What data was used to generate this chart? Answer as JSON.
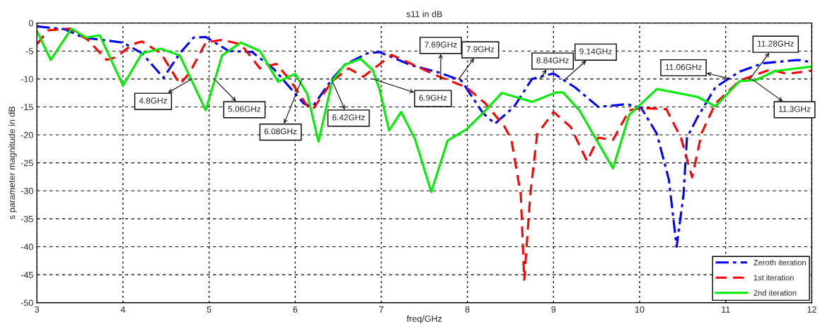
{
  "chart_data": {
    "type": "line",
    "title": "s11 in dB",
    "xlabel": "freq/GHz",
    "ylabel": "s parameter magnitude in dB",
    "xlim": [
      3,
      12
    ],
    "ylim": [
      -50,
      0
    ],
    "xticks": [
      3,
      4,
      5,
      6,
      7,
      8,
      9,
      10,
      11,
      12
    ],
    "yticks": [
      -50,
      -45,
      -40,
      -35,
      -30,
      -25,
      -20,
      -15,
      -10,
      -5,
      0
    ],
    "grid": true,
    "legend": "bottom right",
    "series": [
      {
        "name": "Zeroth iteration",
        "color": "#0000ff",
        "line_style": "dashdot",
        "x": [
          3,
          3.32,
          3.54,
          4.0,
          4.22,
          4.47,
          4.66,
          4.82,
          4.96,
          5.23,
          5.5,
          5.75,
          6.1,
          6.2,
          6.43,
          6.57,
          6.84,
          6.98,
          7.34,
          7.66,
          7.93,
          8.18,
          8.32,
          8.54,
          8.75,
          9.0,
          9.25,
          9.52,
          9.85,
          10.02,
          10.2,
          10.34,
          10.43,
          10.51,
          10.55,
          10.67,
          10.88,
          11.16,
          11.43,
          11.84,
          12
        ],
        "values": [
          -0.6,
          -1.1,
          -2.6,
          -3.5,
          -5.4,
          -9.8,
          -5.4,
          -2.6,
          -2.5,
          -5.0,
          -5.2,
          -8.2,
          -14.4,
          -15,
          -10,
          -7.5,
          -5.4,
          -5.2,
          -7.5,
          -8.8,
          -10.3,
          -16.1,
          -18,
          -15,
          -10,
          -9.0,
          -11.5,
          -15,
          -14.5,
          -15.2,
          -19.8,
          -28,
          -40,
          -30.7,
          -20.5,
          -16.9,
          -11.5,
          -8.7,
          -7.2,
          -6.6,
          -7.0
        ]
      },
      {
        "name": "1st iteration",
        "color": "#ff0000",
        "line_style": "dashed",
        "x": [
          3,
          3.13,
          3.38,
          3.59,
          3.81,
          3.92,
          4.11,
          4.22,
          4.44,
          4.66,
          4.77,
          4.96,
          5.15,
          5.37,
          5.59,
          5.78,
          5.94,
          6.16,
          6.21,
          6.43,
          6.62,
          6.79,
          7.12,
          7.66,
          7.99,
          8.21,
          8.43,
          8.51,
          8.62,
          8.66,
          8.73,
          8.81,
          9.0,
          9.2,
          9.39,
          9.52,
          9.69,
          9.88,
          10.02,
          10.31,
          10.48,
          10.61,
          10.72,
          10.88,
          11.16,
          11.52,
          11.71,
          12
        ],
        "values": [
          -3.8,
          -1.3,
          -1.0,
          -3.0,
          -6.6,
          -6.1,
          -3.8,
          -3.3,
          -5.4,
          -10.9,
          -9,
          -3.5,
          -3.0,
          -3.8,
          -8.1,
          -7.3,
          -10.2,
          -15.3,
          -15.3,
          -10.4,
          -8.1,
          -9.6,
          -5.7,
          -9.5,
          -11.5,
          -14.4,
          -18.5,
          -20.8,
          -30.7,
          -45.9,
          -30.7,
          -19.9,
          -15.9,
          -18.6,
          -24.7,
          -20.5,
          -20.9,
          -15.6,
          -15.2,
          -15.4,
          -20.5,
          -27.6,
          -19.7,
          -14.4,
          -10.3,
          -8.3,
          -9.1,
          -8.5
        ]
      },
      {
        "name": "2nd iteration",
        "color": "#00ee00",
        "line_style": "solid",
        "x": [
          3,
          3.16,
          3.4,
          3.57,
          3.73,
          4.0,
          4.22,
          4.44,
          4.66,
          4.96,
          5.15,
          5.37,
          5.59,
          5.8,
          6.0,
          6.14,
          6.27,
          6.43,
          6.57,
          6.76,
          6.9,
          6.98,
          7.09,
          7.23,
          7.39,
          7.58,
          7.77,
          7.99,
          8.18,
          8.4,
          8.75,
          9.03,
          9.11,
          9.3,
          9.69,
          9.88,
          10.2,
          10.67,
          10.88,
          11.16,
          11.35,
          11.57,
          11.98,
          12
        ],
        "values": [
          -1.4,
          -6.6,
          -1.0,
          -2.6,
          -2.2,
          -11.2,
          -5.4,
          -4.6,
          -5.8,
          -15.6,
          -5.8,
          -3.5,
          -5.0,
          -10.5,
          -9.1,
          -12.7,
          -21.2,
          -10.4,
          -7.5,
          -6.4,
          -8.4,
          -11.9,
          -19.2,
          -15.9,
          -20.7,
          -30.2,
          -21,
          -19,
          -16.1,
          -12.5,
          -14.1,
          -12.4,
          -12.4,
          -15.6,
          -26,
          -16.4,
          -11.8,
          -13.2,
          -14.9,
          -10.4,
          -10.2,
          -8.6,
          -7.8,
          -7.8
        ]
      }
    ],
    "annotations": [
      {
        "text": "4.8GHz",
        "x": 4.8,
        "y": -10
      },
      {
        "text": "5.06GHz",
        "x": 5.06,
        "y": -10
      },
      {
        "text": "6.08GHz",
        "x": 6.08,
        "y": -10
      },
      {
        "text": "6.42GHz",
        "x": 6.42,
        "y": -10
      },
      {
        "text": "6.9GHz",
        "x": 6.9,
        "y": -10
      },
      {
        "text": "7.69GHz",
        "x": 7.69,
        "y": -10
      },
      {
        "text": "7.9GHz",
        "x": 7.9,
        "y": -10
      },
      {
        "text": "8.84GHz",
        "x": 8.84,
        "y": -10
      },
      {
        "text": "9.14GHz",
        "x": 9.14,
        "y": -10
      },
      {
        "text": "11.06GHz",
        "x": 11.06,
        "y": -10
      },
      {
        "text": "11.28GHz",
        "x": 11.28,
        "y": -10
      },
      {
        "text": "11.3GHz",
        "x": 11.3,
        "y": -10
      }
    ]
  }
}
